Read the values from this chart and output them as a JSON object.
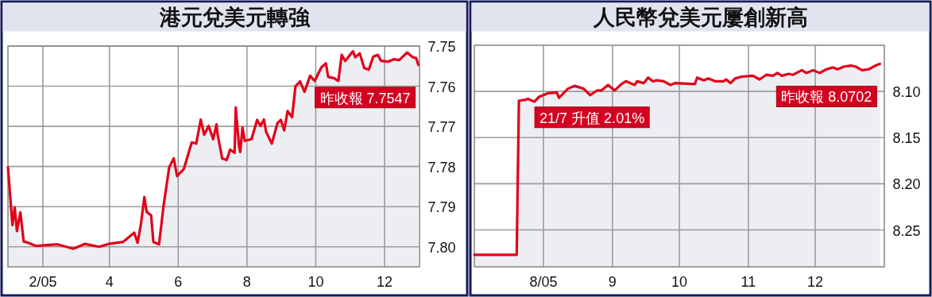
{
  "chart_data": [
    {
      "type": "line",
      "title": "港元兌美元轉強",
      "color": "#e2001a",
      "grid": true,
      "xlim": [
        "2005-01-01",
        "2006-01-01"
      ],
      "xticks": [
        {
          "value": "2005-02-01",
          "label": "2/05"
        },
        {
          "value": "2005-04-01",
          "label": "4"
        },
        {
          "value": "2005-06-01",
          "label": "6"
        },
        {
          "value": "2005-08-01",
          "label": "8"
        },
        {
          "value": "2005-10-01",
          "label": "10"
        },
        {
          "value": "2005-12-01",
          "label": "12"
        }
      ],
      "ylim": [
        7.805,
        7.75
      ],
      "yticks": [
        7.75,
        7.76,
        7.77,
        7.78,
        7.79,
        {
          "value": 7.8,
          "label": "7.80"
        }
      ],
      "x": [
        "2005-01-01",
        "2005-01-05",
        "2005-01-07",
        "2005-01-09",
        "2005-01-12",
        "2005-01-15",
        "2005-01-19",
        "2005-01-26",
        "2005-02-14",
        "2005-02-28",
        "2005-03-10",
        "2005-03-23",
        "2005-03-31",
        "2005-04-13",
        "2005-04-23",
        "2005-04-26",
        "2005-04-29",
        "2005-05-02",
        "2005-05-04",
        "2005-05-08",
        "2005-05-10",
        "2005-05-15",
        "2005-05-19",
        "2005-05-24",
        "2005-05-28",
        "2005-05-31",
        "2005-06-06",
        "2005-06-13",
        "2005-06-17",
        "2005-06-21",
        "2005-06-24",
        "2005-06-28",
        "2005-07-02",
        "2005-07-05",
        "2005-07-06",
        "2005-07-10",
        "2005-07-14",
        "2005-07-17",
        "2005-07-21",
        "2005-07-22",
        "2005-07-25",
        "2005-07-26",
        "2005-07-28",
        "2005-07-30",
        "2005-08-05",
        "2005-08-10",
        "2005-08-13",
        "2005-08-16",
        "2005-08-18",
        "2005-08-23",
        "2005-08-28",
        "2005-08-31",
        "2005-09-03",
        "2005-09-06",
        "2005-09-10",
        "2005-09-13",
        "2005-09-17",
        "2005-09-21",
        "2005-09-26",
        "2005-09-30",
        "2005-10-06",
        "2005-10-10",
        "2005-10-12",
        "2005-10-17",
        "2005-10-21",
        "2005-10-24",
        "2005-10-27",
        "2005-11-03",
        "2005-11-05",
        "2005-11-09",
        "2005-11-13",
        "2005-11-17",
        "2005-11-21",
        "2005-11-25",
        "2005-11-28",
        "2005-12-04",
        "2005-12-09",
        "2005-12-14",
        "2005-12-21",
        "2005-12-26",
        "2005-12-29",
        "2005-12-31"
      ],
      "values": [
        7.7802,
        7.7946,
        7.7902,
        7.7961,
        7.7914,
        7.7987,
        7.799,
        7.7998,
        7.7994,
        7.8005,
        7.7993,
        7.8,
        7.7993,
        7.7988,
        7.7965,
        7.799,
        7.7942,
        7.7876,
        7.7913,
        7.7922,
        7.7988,
        7.7994,
        7.7898,
        7.7802,
        7.778,
        7.7824,
        7.7806,
        7.774,
        7.7743,
        7.7683,
        7.7721,
        7.7699,
        7.7732,
        7.7695,
        7.7721,
        7.778,
        7.7784,
        7.7758,
        7.7766,
        7.7653,
        7.7751,
        7.7764,
        7.7703,
        7.7736,
        7.7732,
        7.7684,
        7.7699,
        7.7683,
        7.7714,
        7.7743,
        7.7692,
        7.7684,
        7.771,
        7.7662,
        7.7677,
        7.76,
        7.7588,
        7.7614,
        7.7574,
        7.7587,
        7.7553,
        7.7543,
        7.7577,
        7.758,
        7.7587,
        7.7522,
        7.7537,
        7.7513,
        7.7528,
        7.7518,
        7.7555,
        7.7559,
        7.7526,
        7.7522,
        7.7537,
        7.7539,
        7.7533,
        7.7535,
        7.7516,
        7.7528,
        7.753,
        7.7547
      ],
      "annotations": [
        {
          "text": "昨收報 7.7547",
          "x": "2005-12-31",
          "y": 7.7547
        }
      ]
    },
    {
      "type": "line",
      "title": "人民幣兌美元屢創新高",
      "color": "#e2001a",
      "grid": true,
      "xlim": [
        "2005-07-01",
        "2006-01-01"
      ],
      "xticks": [
        {
          "value": "2005-08-01",
          "label": "8/05"
        },
        {
          "value": "2005-09-01",
          "label": "9"
        },
        {
          "value": "2005-10-01",
          "label": "10"
        },
        {
          "value": "2005-11-01",
          "label": "11"
        },
        {
          "value": "2005-12-01",
          "label": "12"
        }
      ],
      "ylim": [
        8.29,
        8.05
      ],
      "yticks": [
        {
          "value": 8.1,
          "label": "8.10"
        },
        8.15,
        {
          "value": 8.2,
          "label": "8.20"
        },
        8.25
      ],
      "x": [
        "2005-07-01",
        "2005-07-20",
        "2005-07-21",
        "2005-07-24",
        "2005-07-25",
        "2005-07-28",
        "2005-07-30",
        "2005-08-03",
        "2005-08-07",
        "2005-08-08",
        "2005-08-12",
        "2005-08-15",
        "2005-08-19",
        "2005-08-22",
        "2005-08-25",
        "2005-08-27",
        "2005-08-30",
        "2005-09-02",
        "2005-09-05",
        "2005-09-07",
        "2005-09-11",
        "2005-09-12",
        "2005-09-15",
        "2005-09-17",
        "2005-09-19",
        "2005-09-21",
        "2005-09-24",
        "2005-09-27",
        "2005-09-29",
        "2005-10-08",
        "2005-10-09",
        "2005-10-12",
        "2005-10-14",
        "2005-10-17",
        "2005-10-21",
        "2005-10-22",
        "2005-10-24",
        "2005-10-26",
        "2005-10-29",
        "2005-11-03",
        "2005-11-06",
        "2005-11-09",
        "2005-11-12",
        "2005-11-14",
        "2005-11-16",
        "2005-11-19",
        "2005-11-21",
        "2005-11-25",
        "2005-11-27",
        "2005-11-30",
        "2005-12-03",
        "2005-12-06",
        "2005-12-09",
        "2005-12-11",
        "2005-12-14",
        "2005-12-17",
        "2005-12-19",
        "2005-12-22",
        "2005-12-25",
        "2005-12-28",
        "2005-12-30"
      ],
      "values": [
        8.277,
        8.277,
        8.11,
        8.109,
        8.108,
        8.111,
        8.106,
        8.102,
        8.101,
        8.107,
        8.097,
        8.094,
        8.097,
        8.104,
        8.099,
        8.099,
        8.093,
        8.099,
        8.092,
        8.089,
        8.093,
        8.089,
        8.091,
        8.085,
        8.089,
        8.088,
        8.089,
        8.093,
        8.091,
        8.092,
        8.085,
        8.088,
        8.086,
        8.089,
        8.089,
        8.087,
        8.091,
        8.086,
        8.084,
        8.083,
        8.087,
        8.082,
        8.083,
        8.08,
        8.083,
        8.081,
        8.082,
        8.077,
        8.08,
        8.077,
        8.08,
        8.076,
        8.074,
        8.076,
        8.073,
        8.072,
        8.073,
        8.077,
        8.076,
        8.072,
        8.0702
      ],
      "annotations": [
        {
          "text": "21/7 升值 2.01%",
          "x": "2005-07-21",
          "y": 8.11
        },
        {
          "text": "昨收報 8.0702",
          "x": "2005-12-30",
          "y": 8.0702
        }
      ]
    }
  ]
}
